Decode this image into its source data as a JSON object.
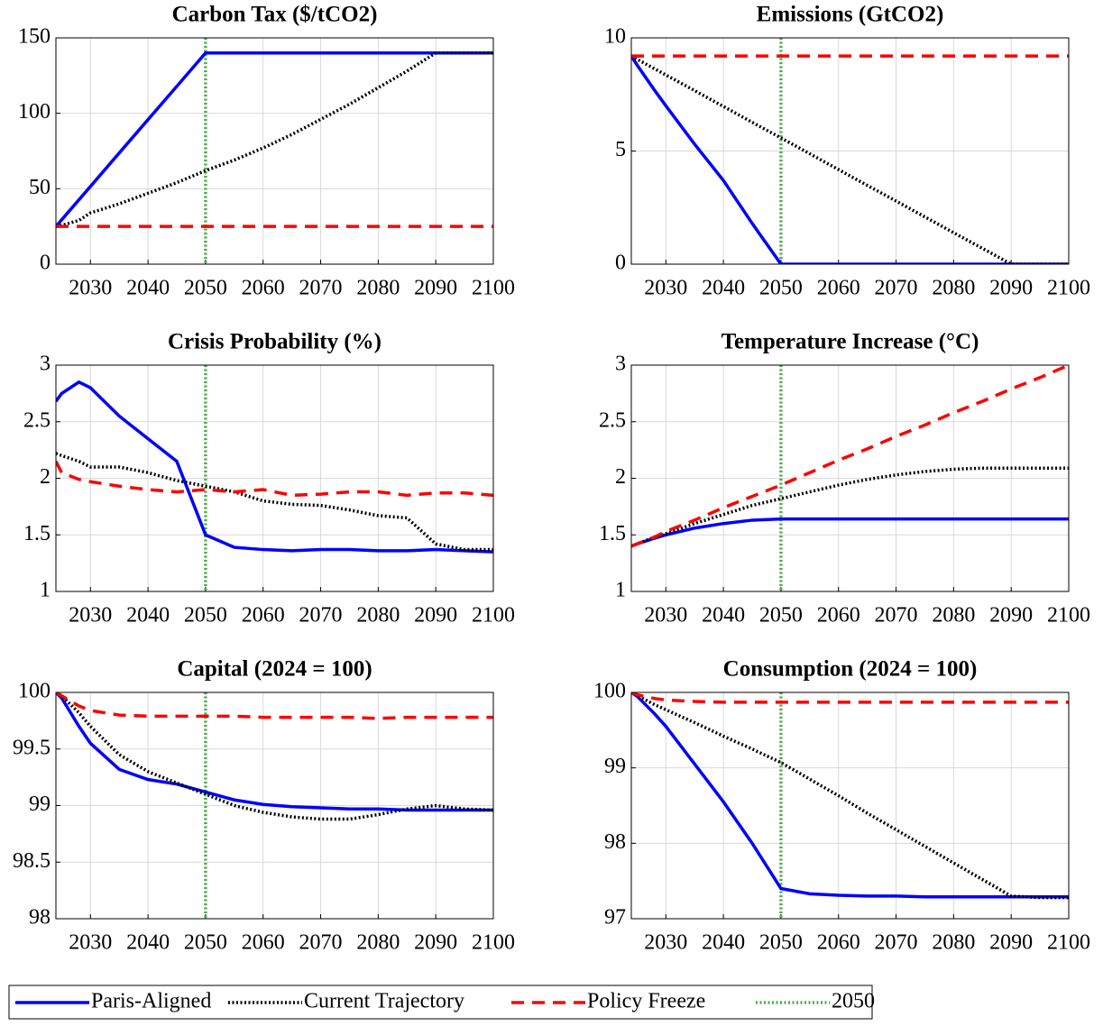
{
  "chart_data": [
    {
      "type": "line",
      "title": "Carbon Tax ($/tCO2)",
      "x": [
        2024,
        2025,
        2028,
        2030,
        2035,
        2040,
        2045,
        2050,
        2055,
        2060,
        2065,
        2070,
        2075,
        2080,
        2085,
        2090,
        2095,
        2100
      ],
      "xlim": [
        2024,
        2100
      ],
      "xticks": [
        2030,
        2040,
        2050,
        2060,
        2070,
        2080,
        2090,
        2100
      ],
      "ylim": [
        0,
        150
      ],
      "yticks": [
        0,
        50,
        100,
        150
      ],
      "grid": true,
      "series": [
        {
          "name": "Paris-Aligned",
          "color": "#0000ff",
          "style": "solid",
          "values": [
            25,
            29.4,
            42.7,
            51.5,
            73.7,
            95.8,
            117.9,
            140,
            140,
            140,
            140,
            140,
            140,
            140,
            140,
            140,
            140,
            140
          ]
        },
        {
          "name": "Current Trajectory",
          "color": "#000000",
          "style": "dotted",
          "values": [
            25,
            25.8,
            29,
            34,
            40,
            47,
            54,
            62,
            69,
            77,
            86,
            96,
            106,
            117,
            128,
            140,
            140,
            140
          ]
        },
        {
          "name": "Policy Freeze",
          "color": "#ff0000",
          "style": "dashed",
          "values": [
            25,
            25,
            25,
            25,
            25,
            25,
            25,
            25,
            25,
            25,
            25,
            25,
            25,
            25,
            25,
            25,
            25,
            25
          ]
        }
      ],
      "vlines": [
        {
          "name": "2050",
          "x": 2050,
          "color": "#4daf4a",
          "style": "dotted"
        }
      ]
    },
    {
      "type": "line",
      "title": "Emissions (GtCO2)",
      "x": [
        2024,
        2025,
        2028,
        2030,
        2035,
        2040,
        2045,
        2050,
        2055,
        2060,
        2065,
        2070,
        2075,
        2080,
        2085,
        2090,
        2095,
        2100
      ],
      "xlim": [
        2024,
        2100
      ],
      "xticks": [
        2030,
        2040,
        2050,
        2060,
        2070,
        2080,
        2090,
        2100
      ],
      "ylim": [
        0,
        10
      ],
      "yticks": [
        0,
        5,
        10
      ],
      "grid": true,
      "series": [
        {
          "name": "Paris-Aligned",
          "color": "#0000ff",
          "style": "solid",
          "values": [
            9.2,
            8.8,
            7.7,
            7.0,
            5.3,
            3.7,
            1.8,
            0,
            0,
            0,
            0,
            0,
            0,
            0,
            0,
            0,
            0,
            0
          ]
        },
        {
          "name": "Current Trajectory",
          "color": "#000000",
          "style": "dotted",
          "values": [
            9.2,
            9.06,
            8.64,
            8.36,
            7.67,
            6.97,
            6.27,
            5.58,
            4.88,
            4.18,
            3.48,
            2.79,
            2.09,
            1.39,
            0.7,
            0,
            0,
            0
          ]
        },
        {
          "name": "Policy Freeze",
          "color": "#ff0000",
          "style": "dashed",
          "values": [
            9.2,
            9.2,
            9.2,
            9.2,
            9.2,
            9.2,
            9.2,
            9.2,
            9.2,
            9.2,
            9.2,
            9.2,
            9.2,
            9.2,
            9.2,
            9.2,
            9.2,
            9.2
          ]
        }
      ],
      "vlines": [
        {
          "name": "2050",
          "x": 2050,
          "color": "#4daf4a",
          "style": "dotted"
        }
      ]
    },
    {
      "type": "line",
      "title": "Crisis Probability (%)",
      "x": [
        2024,
        2025,
        2028,
        2030,
        2035,
        2040,
        2045,
        2050,
        2055,
        2060,
        2065,
        2070,
        2075,
        2080,
        2085,
        2090,
        2095,
        2100
      ],
      "xlim": [
        2024,
        2100
      ],
      "xticks": [
        2030,
        2040,
        2050,
        2060,
        2070,
        2080,
        2090,
        2100
      ],
      "ylim": [
        1,
        3
      ],
      "yticks": [
        1,
        1.5,
        2,
        2.5,
        3
      ],
      "grid": true,
      "series": [
        {
          "name": "Paris-Aligned",
          "color": "#0000ff",
          "style": "solid",
          "values": [
            2.68,
            2.75,
            2.85,
            2.8,
            2.55,
            2.35,
            2.15,
            1.5,
            1.39,
            1.37,
            1.36,
            1.37,
            1.37,
            1.36,
            1.36,
            1.37,
            1.36,
            1.35
          ]
        },
        {
          "name": "Current Trajectory",
          "color": "#000000",
          "style": "dotted",
          "values": [
            2.22,
            2.2,
            2.15,
            2.1,
            2.1,
            2.05,
            1.98,
            1.93,
            1.88,
            1.8,
            1.77,
            1.76,
            1.72,
            1.67,
            1.65,
            1.42,
            1.37,
            1.37
          ]
        },
        {
          "name": "Policy Freeze",
          "color": "#ff0000",
          "style": "dashed",
          "values": [
            2.15,
            2.05,
            1.99,
            1.97,
            1.93,
            1.9,
            1.88,
            1.9,
            1.88,
            1.9,
            1.85,
            1.86,
            1.88,
            1.88,
            1.85,
            1.87,
            1.87,
            1.85
          ]
        }
      ],
      "vlines": [
        {
          "name": "2050",
          "x": 2050,
          "color": "#4daf4a",
          "style": "dotted"
        }
      ]
    },
    {
      "type": "line",
      "title": "Temperature Increase (°C)",
      "x": [
        2024,
        2025,
        2028,
        2030,
        2035,
        2040,
        2045,
        2050,
        2055,
        2060,
        2065,
        2070,
        2075,
        2080,
        2085,
        2090,
        2095,
        2100
      ],
      "xlim": [
        2024,
        2100
      ],
      "xticks": [
        2030,
        2040,
        2050,
        2060,
        2070,
        2080,
        2090,
        2100
      ],
      "ylim": [
        1,
        3
      ],
      "yticks": [
        1,
        1.5,
        2,
        2.5,
        3
      ],
      "grid": true,
      "series": [
        {
          "name": "Paris-Aligned",
          "color": "#0000ff",
          "style": "solid",
          "values": [
            1.4,
            1.42,
            1.47,
            1.5,
            1.56,
            1.6,
            1.63,
            1.64,
            1.64,
            1.64,
            1.64,
            1.64,
            1.64,
            1.64,
            1.64,
            1.64,
            1.64,
            1.64
          ]
        },
        {
          "name": "Current Trajectory",
          "color": "#000000",
          "style": "dotted",
          "values": [
            1.4,
            1.42,
            1.48,
            1.51,
            1.6,
            1.68,
            1.76,
            1.82,
            1.88,
            1.94,
            1.99,
            2.03,
            2.06,
            2.08,
            2.09,
            2.09,
            2.09,
            2.09
          ]
        },
        {
          "name": "Policy Freeze",
          "color": "#ff0000",
          "style": "dashed",
          "values": [
            1.4,
            1.42,
            1.48,
            1.53,
            1.63,
            1.74,
            1.84,
            1.94,
            2.05,
            2.16,
            2.26,
            2.37,
            2.47,
            2.58,
            2.68,
            2.79,
            2.89,
            3.0
          ]
        }
      ],
      "vlines": [
        {
          "name": "2050",
          "x": 2050,
          "color": "#4daf4a",
          "style": "dotted"
        }
      ]
    },
    {
      "type": "line",
      "title": "Capital (2024 = 100)",
      "x": [
        2024,
        2025,
        2028,
        2030,
        2035,
        2040,
        2045,
        2050,
        2055,
        2060,
        2065,
        2070,
        2075,
        2080,
        2085,
        2090,
        2095,
        2100
      ],
      "xlim": [
        2024,
        2100
      ],
      "xticks": [
        2030,
        2040,
        2050,
        2060,
        2070,
        2080,
        2090,
        2100
      ],
      "ylim": [
        98,
        100
      ],
      "yticks": [
        98,
        98.5,
        99,
        99.5,
        100
      ],
      "grid": true,
      "series": [
        {
          "name": "Paris-Aligned",
          "color": "#0000ff",
          "style": "solid",
          "values": [
            100,
            99.95,
            99.7,
            99.55,
            99.32,
            99.23,
            99.19,
            99.12,
            99.05,
            99.01,
            98.99,
            98.98,
            98.97,
            98.97,
            98.96,
            98.96,
            98.96,
            98.96
          ]
        },
        {
          "name": "Current Trajectory",
          "color": "#000000",
          "style": "dotted",
          "values": [
            100,
            99.97,
            99.82,
            99.7,
            99.45,
            99.3,
            99.2,
            99.1,
            99.0,
            98.94,
            98.9,
            98.88,
            98.88,
            98.92,
            98.97,
            99.0,
            98.97,
            98.96
          ]
        },
        {
          "name": "Policy Freeze",
          "color": "#ff0000",
          "style": "dashed",
          "values": [
            100,
            99.97,
            99.88,
            99.84,
            99.8,
            99.79,
            99.79,
            99.79,
            99.79,
            99.78,
            99.78,
            99.78,
            99.78,
            99.77,
            99.78,
            99.78,
            99.78,
            99.78
          ]
        }
      ],
      "vlines": [
        {
          "name": "2050",
          "x": 2050,
          "color": "#4daf4a",
          "style": "dotted"
        }
      ]
    },
    {
      "type": "line",
      "title": "Consumption (2024 = 100)",
      "x": [
        2024,
        2025,
        2028,
        2030,
        2035,
        2040,
        2045,
        2050,
        2055,
        2060,
        2065,
        2070,
        2075,
        2080,
        2085,
        2090,
        2095,
        2100
      ],
      "xlim": [
        2024,
        2100
      ],
      "xticks": [
        2030,
        2040,
        2050,
        2060,
        2070,
        2080,
        2090,
        2100
      ],
      "ylim": [
        97,
        100
      ],
      "yticks": [
        97,
        98,
        99,
        100
      ],
      "grid": true,
      "series": [
        {
          "name": "Paris-Aligned",
          "color": "#0000ff",
          "style": "solid",
          "values": [
            100,
            99.95,
            99.72,
            99.55,
            99.05,
            98.55,
            98.0,
            97.4,
            97.33,
            97.31,
            97.3,
            97.3,
            97.29,
            97.29,
            97.29,
            97.29,
            97.29,
            97.29
          ]
        },
        {
          "name": "Current Trajectory",
          "color": "#000000",
          "style": "dotted",
          "values": [
            100,
            99.96,
            99.84,
            99.77,
            99.6,
            99.42,
            99.25,
            99.07,
            98.85,
            98.63,
            98.4,
            98.18,
            97.96,
            97.74,
            97.52,
            97.3,
            97.28,
            97.28
          ]
        },
        {
          "name": "Policy Freeze",
          "color": "#ff0000",
          "style": "dashed",
          "values": [
            100,
            99.97,
            99.92,
            99.9,
            99.88,
            99.87,
            99.87,
            99.87,
            99.87,
            99.87,
            99.87,
            99.87,
            99.87,
            99.87,
            99.87,
            99.87,
            99.87,
            99.87
          ]
        }
      ],
      "vlines": [
        {
          "name": "2050",
          "x": 2050,
          "color": "#4daf4a",
          "style": "dotted"
        }
      ]
    }
  ]
}
